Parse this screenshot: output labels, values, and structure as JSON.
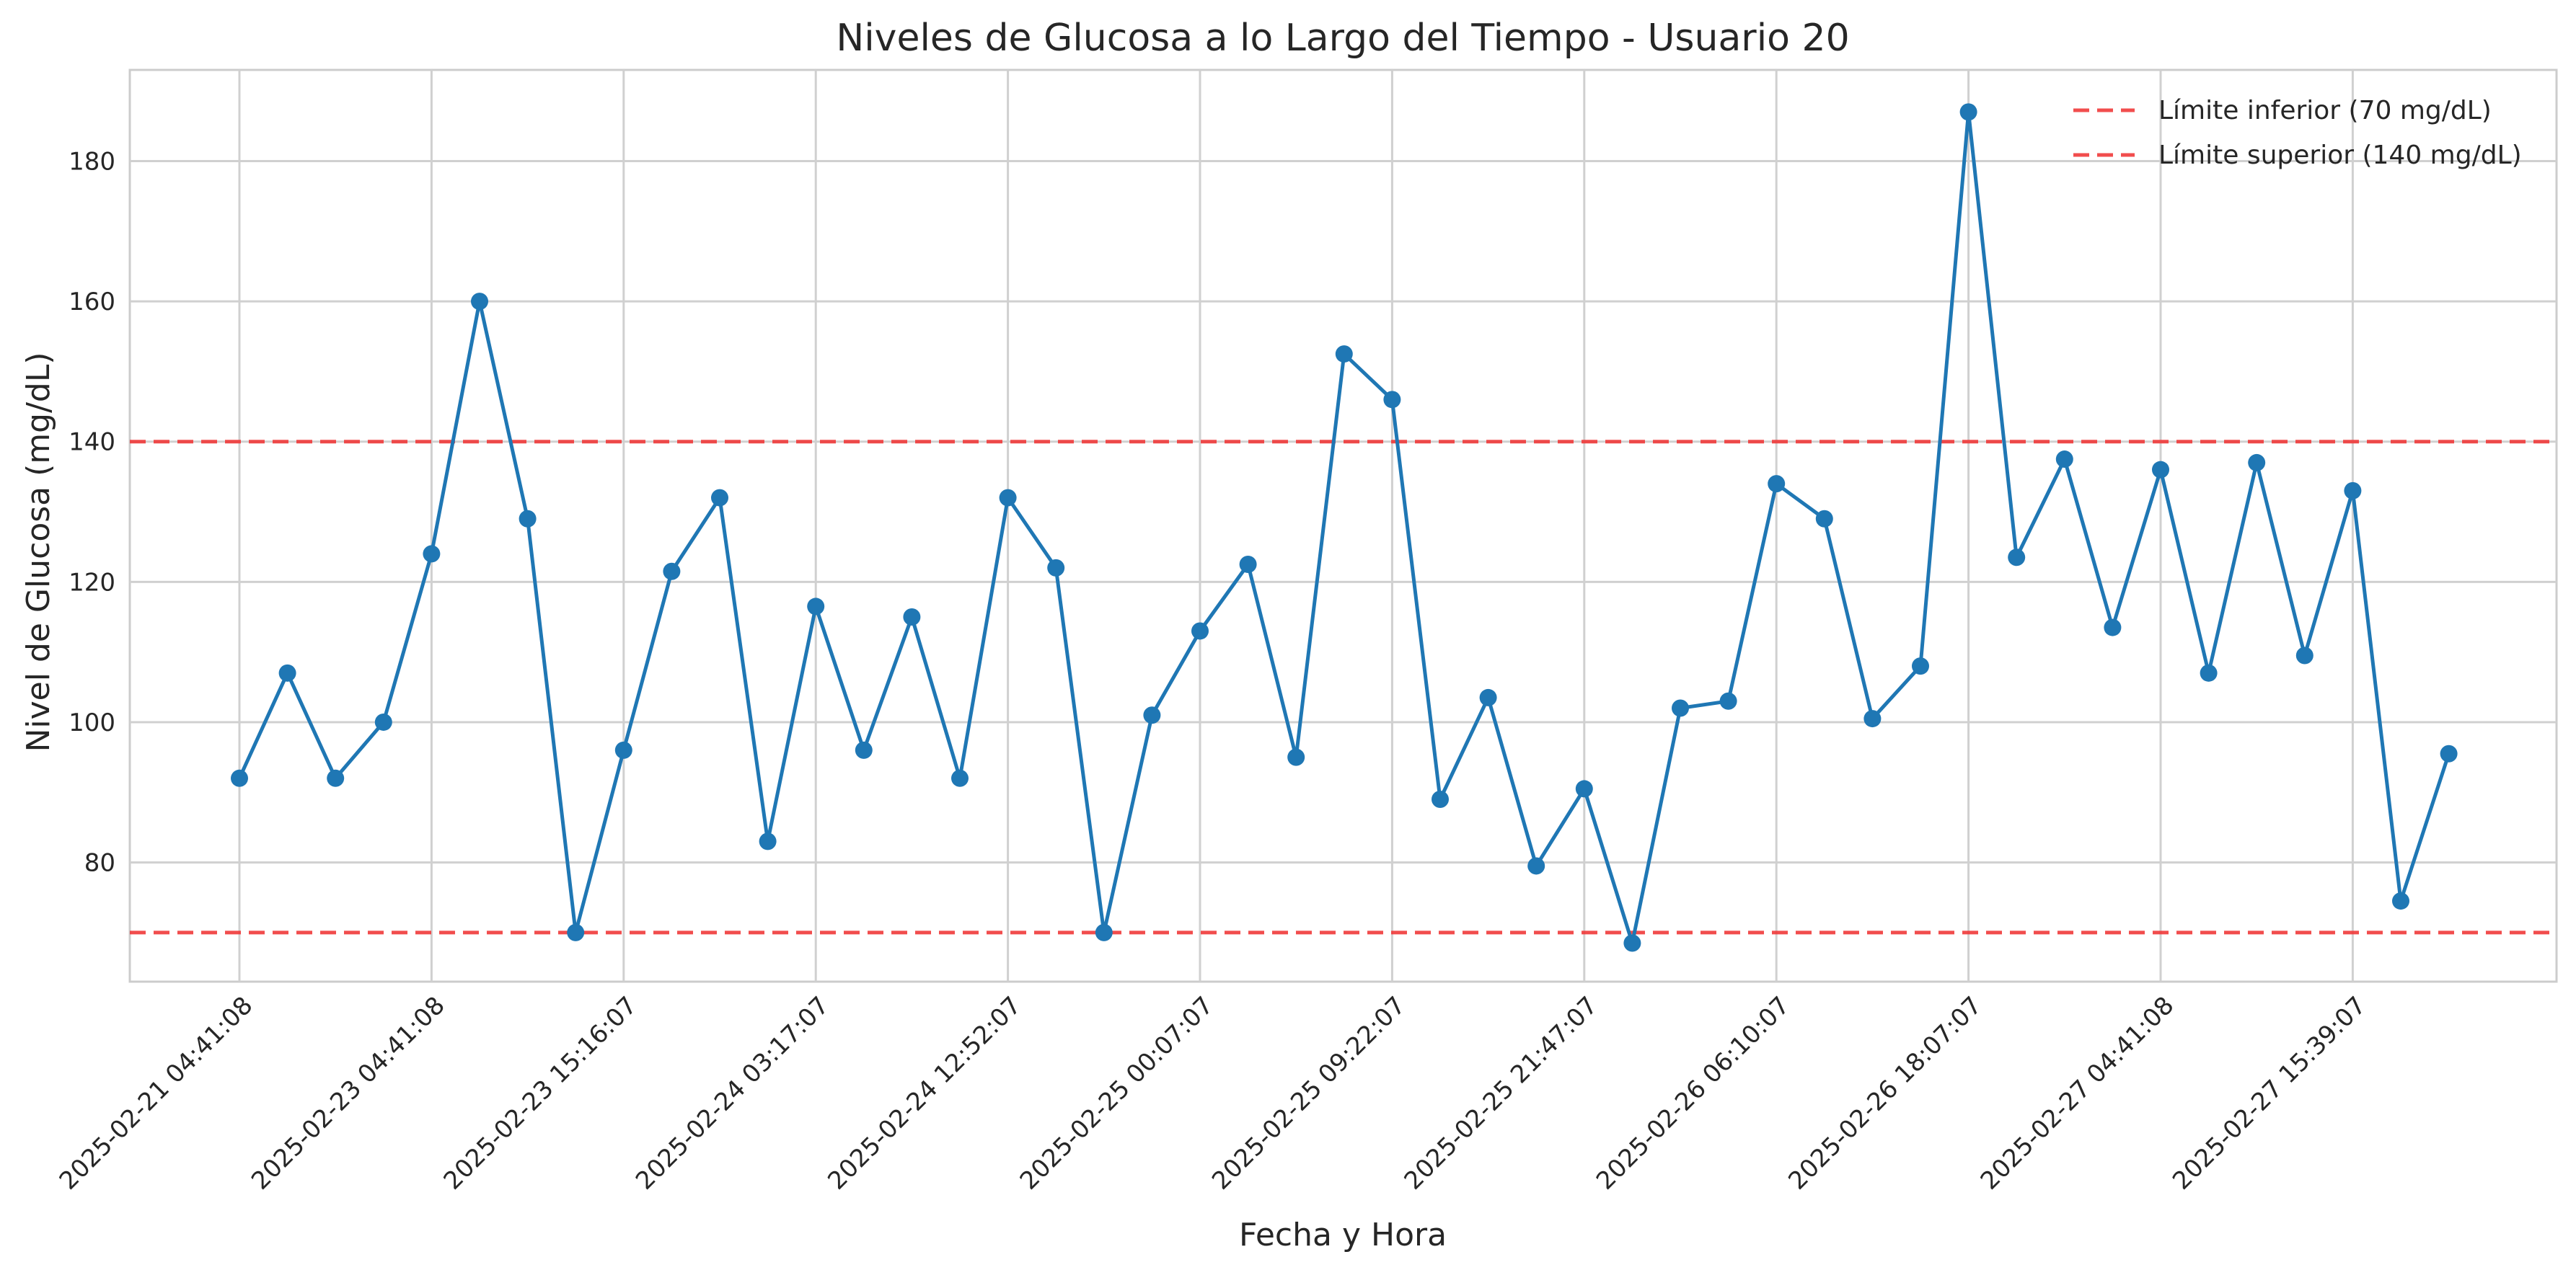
{
  "chart_data": {
    "type": "line",
    "title": "Niveles de Glucosa a lo Largo del Tiempo - Usuario 20",
    "xlabel": "Fecha y Hora",
    "ylabel": "Nivel de Glucosa (mg/dL)",
    "ylim": [
      63,
      193
    ],
    "yticks": [
      80,
      100,
      120,
      140,
      160,
      180
    ],
    "grid": true,
    "legend_position": "top-right",
    "x_tick_labels": [
      "2025-02-21 04:41:08",
      "2025-02-23 04:41:08",
      "2025-02-23 15:16:07",
      "2025-02-24 03:17:07",
      "2025-02-24 12:52:07",
      "2025-02-25 00:07:07",
      "2025-02-25 09:22:07",
      "2025-02-25 21:47:07",
      "2025-02-26 06:10:07",
      "2025-02-26 18:07:07",
      "2025-02-27 04:41:08",
      "2025-02-27 15:39:07"
    ],
    "x_tick_every": 4,
    "series": [
      {
        "values": [
          92,
          107,
          92,
          100,
          124,
          160,
          129,
          70,
          96,
          121.5,
          132,
          83,
          116.5,
          96,
          115,
          92,
          132,
          122,
          70,
          101,
          113,
          122.5,
          95,
          152.5,
          146,
          89,
          103.5,
          79.5,
          90.5,
          68.5,
          102,
          103,
          134,
          129,
          100.5,
          108,
          187,
          123.5,
          137.5,
          113.5,
          136,
          107,
          137,
          109.5,
          133,
          74.5,
          95.5
        ],
        "color": "#1f77b4"
      }
    ],
    "thresholds": [
      {
        "name": "Límite inferior (70 mg/dL)",
        "value": 70,
        "color": "#f03a3a"
      },
      {
        "name": "Límite superior (140 mg/dL)",
        "value": 140,
        "color": "#f03a3a"
      }
    ]
  }
}
